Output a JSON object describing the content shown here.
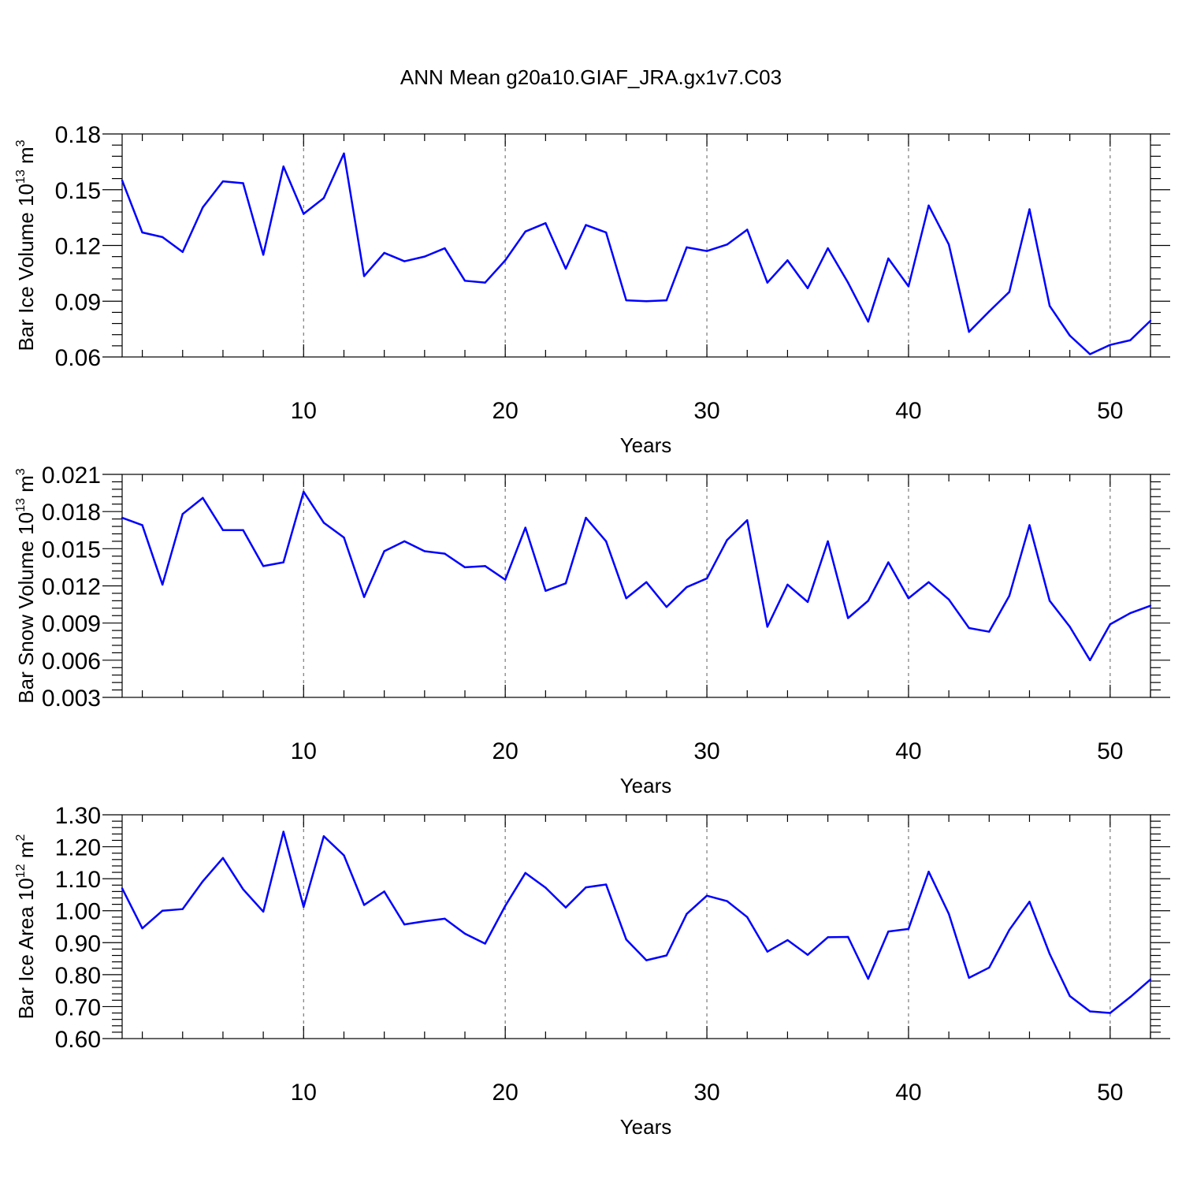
{
  "figure_title": "ANN Mean g20a10.GIAF_JRA.gx1v7.C03",
  "chart_data": [
    {
      "type": "line",
      "title": "ANN Mean g20a10.GIAF_JRA.gx1v7.C03",
      "ylabel_main": "Bar Ice Volume 10",
      "ylabel_exp": "13",
      "ylabel_unit": " m",
      "ylabel_unit_exp": "3",
      "xlabel": "Years",
      "xlim": [
        1,
        52
      ],
      "ylim": [
        0.06,
        0.18
      ],
      "xticks": [
        10,
        20,
        30,
        40,
        50
      ],
      "xtick_labels": [
        "10",
        "20",
        "30",
        "40",
        "50"
      ],
      "yticks": [
        0.06,
        0.09,
        0.12,
        0.15,
        0.18
      ],
      "ytick_labels": [
        "0.06",
        "0.09",
        "0.12",
        "0.15",
        "0.18"
      ],
      "grid": "vertical dashed at x ticks",
      "series_color": "#0000ff",
      "x": [
        1,
        2,
        3,
        4,
        5,
        6,
        7,
        8,
        9,
        10,
        11,
        12,
        13,
        14,
        15,
        16,
        17,
        18,
        19,
        20,
        21,
        22,
        23,
        24,
        25,
        26,
        27,
        28,
        29,
        30,
        31,
        32,
        33,
        34,
        35,
        36,
        37,
        38,
        39,
        40,
        41,
        42,
        43,
        44,
        45,
        46,
        47,
        48,
        49,
        50,
        51,
        52
      ],
      "y": [
        0.155,
        0.127,
        0.1245,
        0.1165,
        0.1405,
        0.1545,
        0.1535,
        0.115,
        0.1625,
        0.137,
        0.1455,
        0.1695,
        0.1035,
        0.116,
        0.1115,
        0.114,
        0.1185,
        0.101,
        0.1,
        0.112,
        0.1275,
        0.132,
        0.1075,
        0.131,
        0.127,
        0.0905,
        0.09,
        0.0905,
        0.119,
        0.117,
        0.1205,
        0.1285,
        0.1,
        0.112,
        0.097,
        0.1185,
        0.1,
        0.079,
        0.113,
        0.098,
        0.1415,
        0.1205,
        0.0735,
        0.0845,
        0.095,
        0.1395,
        0.0875,
        0.0715,
        0.0615,
        0.0665,
        0.069,
        0.0795
      ]
    },
    {
      "type": "line",
      "ylabel_main": "Bar Snow Volume 10",
      "ylabel_exp": "13",
      "ylabel_unit": " m",
      "ylabel_unit_exp": "3",
      "xlabel": "Years",
      "xlim": [
        1,
        52
      ],
      "ylim": [
        0.003,
        0.021
      ],
      "xticks": [
        10,
        20,
        30,
        40,
        50
      ],
      "xtick_labels": [
        "10",
        "20",
        "30",
        "40",
        "50"
      ],
      "yticks": [
        0.003,
        0.006,
        0.009,
        0.012,
        0.015,
        0.018,
        0.021
      ],
      "ytick_labels": [
        "0.003",
        "0.006",
        "0.009",
        "0.012",
        "0.015",
        "0.018",
        "0.021"
      ],
      "grid": "vertical dashed at x ticks",
      "series_color": "#0000ff",
      "x": [
        1,
        2,
        3,
        4,
        5,
        6,
        7,
        8,
        9,
        10,
        11,
        12,
        13,
        14,
        15,
        16,
        17,
        18,
        19,
        20,
        21,
        22,
        23,
        24,
        25,
        26,
        27,
        28,
        29,
        30,
        31,
        32,
        33,
        34,
        35,
        36,
        37,
        38,
        39,
        40,
        41,
        42,
        43,
        44,
        45,
        46,
        47,
        48,
        49,
        50,
        51,
        52
      ],
      "y": [
        0.0175,
        0.0169,
        0.0121,
        0.0178,
        0.0191,
        0.0165,
        0.0165,
        0.0136,
        0.0139,
        0.0196,
        0.0171,
        0.0159,
        0.0111,
        0.0148,
        0.0156,
        0.0148,
        0.0146,
        0.0135,
        0.0136,
        0.0125,
        0.0167,
        0.0116,
        0.0122,
        0.0175,
        0.0156,
        0.011,
        0.0123,
        0.0103,
        0.0119,
        0.0126,
        0.0157,
        0.0173,
        0.0087,
        0.0121,
        0.0107,
        0.0156,
        0.0094,
        0.0108,
        0.0139,
        0.011,
        0.0123,
        0.0109,
        0.0086,
        0.0083,
        0.0112,
        0.0169,
        0.0108,
        0.0087,
        0.006,
        0.0089,
        0.0098,
        0.0104
      ]
    },
    {
      "type": "line",
      "ylabel_main": "Bar Ice Area 10",
      "ylabel_exp": "12",
      "ylabel_unit": " m",
      "ylabel_unit_exp": "2",
      "xlabel": "Years",
      "xlim": [
        1,
        52
      ],
      "ylim": [
        0.6,
        1.3
      ],
      "xticks": [
        10,
        20,
        30,
        40,
        50
      ],
      "xtick_labels": [
        "10",
        "20",
        "30",
        "40",
        "50"
      ],
      "yticks": [
        0.6,
        0.7,
        0.8,
        0.9,
        1.0,
        1.1,
        1.2,
        1.3
      ],
      "ytick_labels": [
        "0.60",
        "0.70",
        "0.80",
        "0.90",
        "1.00",
        "1.10",
        "1.20",
        "1.30"
      ],
      "grid": "vertical dashed at x ticks",
      "series_color": "#0000ff",
      "x": [
        1,
        2,
        3,
        4,
        5,
        6,
        7,
        8,
        9,
        10,
        11,
        12,
        13,
        14,
        15,
        16,
        17,
        18,
        19,
        20,
        21,
        22,
        23,
        24,
        25,
        26,
        27,
        28,
        29,
        30,
        31,
        32,
        33,
        34,
        35,
        36,
        37,
        38,
        39,
        40,
        41,
        42,
        43,
        44,
        45,
        46,
        47,
        48,
        49,
        50,
        51,
        52
      ],
      "y": [
        1.07,
        0.945,
        1.0,
        1.005,
        1.092,
        1.165,
        1.067,
        0.997,
        1.247,
        1.012,
        1.233,
        1.173,
        1.018,
        1.06,
        0.957,
        0.967,
        0.975,
        0.928,
        0.897,
        1.015,
        1.118,
        1.072,
        1.01,
        1.073,
        1.082,
        0.91,
        0.845,
        0.86,
        0.99,
        1.047,
        1.03,
        0.98,
        0.872,
        0.908,
        0.862,
        0.917,
        0.918,
        0.787,
        0.935,
        0.943,
        1.122,
        0.99,
        0.79,
        0.822,
        0.94,
        1.028,
        0.865,
        0.733,
        0.685,
        0.68,
        0.73,
        0.785
      ]
    }
  ]
}
